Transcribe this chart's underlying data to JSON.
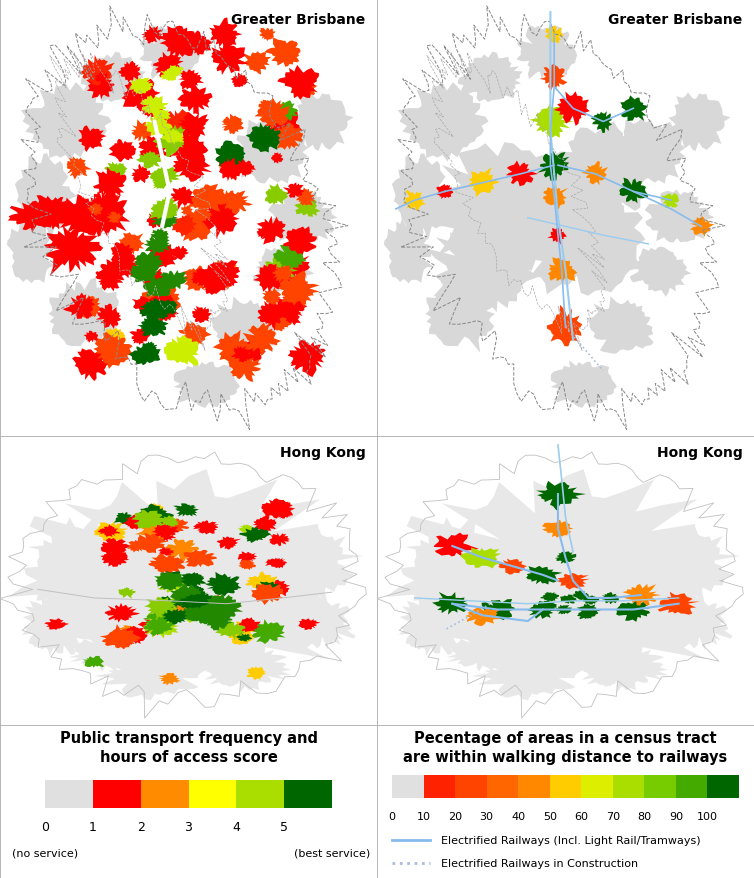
{
  "title_top_left": "Greater Brisbane",
  "title_top_right": "Greater Brisbane",
  "title_bottom_left": "Hong Kong",
  "title_bottom_right": "Hong Kong",
  "legend_left_title": "Public transport frequency and\nhours of access score",
  "legend_left_ticks": [
    "0",
    "1",
    "2",
    "3",
    "4",
    "5"
  ],
  "legend_left_colors": [
    "#e0e0e0",
    "#ff0000",
    "#ff8c00",
    "#ffff00",
    "#aadd00",
    "#006600"
  ],
  "legend_right_title": "Pecentage of areas in a census tract\nare within walking distance to railways",
  "legend_right_ticks": [
    "0",
    "10",
    "20",
    "30",
    "40",
    "50",
    "60",
    "70",
    "80",
    "90",
    "100"
  ],
  "legend_right_colors": [
    "#e0e0e0",
    "#ff2200",
    "#ff4400",
    "#ff6600",
    "#ff8800",
    "#ffcc00",
    "#ddee00",
    "#aadd00",
    "#77cc00",
    "#44aa00",
    "#006600"
  ],
  "line_legend": [
    {
      "label": "Electrified Railways (Incl. Light Rail/Tramways)",
      "color": "#88bbee",
      "style": "solid"
    },
    {
      "label": "Electrified Railways in Construction",
      "color": "#aabbdd",
      "style": "dotted"
    }
  ],
  "background_color": "#ffffff",
  "figsize": [
    7.54,
    8.79
  ],
  "dpi": 100
}
